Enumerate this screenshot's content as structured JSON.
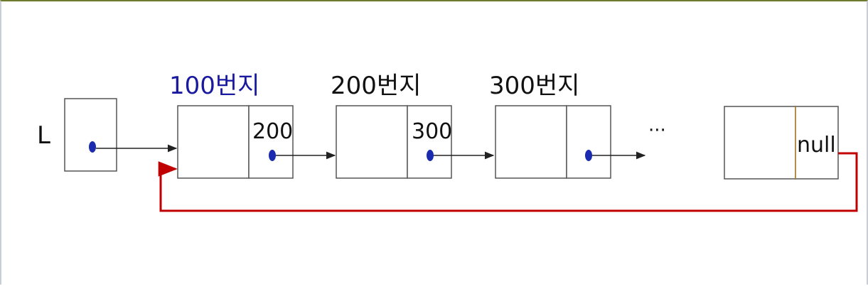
{
  "head_label": "L",
  "nodes": [
    {
      "address": "100번지",
      "next": "200"
    },
    {
      "address": "200번지",
      "next": "300"
    },
    {
      "address": "300번지",
      "next": ""
    }
  ],
  "ellipsis": "···",
  "last_node": {
    "next": "null"
  },
  "colors": {
    "box_stroke": "#555555",
    "pointer_dot": "#1a2bb0",
    "arrow": "#222222",
    "circular_link": "#c00000",
    "address_highlight": "#1a1aa0",
    "text": "#111111"
  }
}
